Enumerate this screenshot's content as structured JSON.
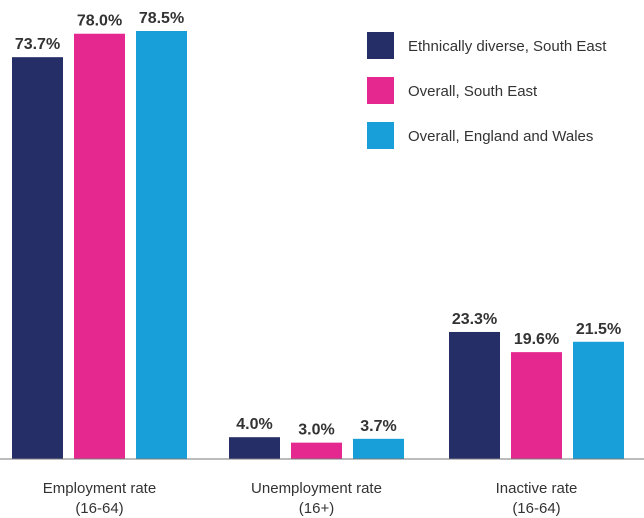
{
  "chart_data": {
    "type": "bar",
    "categories": [
      [
        "Employment rate",
        "(16-64)"
      ],
      [
        "Unemployment rate",
        "(16+)"
      ],
      [
        "Inactive rate",
        "(16-64)"
      ]
    ],
    "series": [
      {
        "name": "Ethnically diverse, South East",
        "color": "#262e68",
        "values": [
          73.7,
          4.0,
          23.3
        ],
        "labels": [
          "73.7%",
          "4.0%",
          "23.3%"
        ]
      },
      {
        "name": "Overall, South East",
        "color": "#e4288f",
        "values": [
          78.0,
          3.0,
          19.6
        ],
        "labels": [
          "78.0%",
          "3.0%",
          "19.6%"
        ]
      },
      {
        "name": "Overall, England and Wales",
        "color": "#189ed8",
        "values": [
          78.5,
          3.7,
          21.5
        ],
        "labels": [
          "78.5%",
          "3.7%",
          "21.5%"
        ]
      }
    ],
    "ylim": [
      0,
      78.5
    ],
    "legend": "top-right",
    "grid": false,
    "title": "",
    "xlabel": "",
    "ylabel": ""
  }
}
